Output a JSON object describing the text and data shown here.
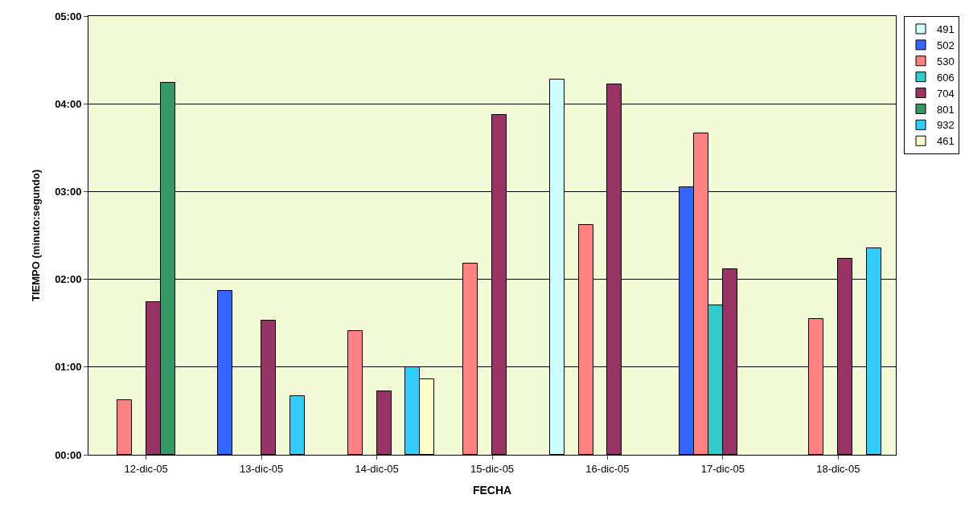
{
  "chart_data": {
    "type": "bar",
    "xlabel": "FECHA",
    "ylabel": "TIEMPO (minuto:segundo)",
    "categories": [
      "12-dic-05",
      "13-dic-05",
      "14-dic-05",
      "15-dic-05",
      "16-dic-05",
      "17-dic-05",
      "18-dic-05"
    ],
    "series": [
      {
        "name": "491",
        "color": "#ccffff",
        "values": [
          null,
          null,
          null,
          null,
          4.28,
          null,
          null
        ]
      },
      {
        "name": "502",
        "color": "#3366ff",
        "values": [
          null,
          1.87,
          null,
          null,
          null,
          3.05,
          null
        ]
      },
      {
        "name": "530",
        "color": "#ff8080",
        "values": [
          0.62,
          null,
          1.41,
          2.18,
          2.62,
          3.66,
          1.55
        ]
      },
      {
        "name": "606",
        "color": "#33cccc",
        "values": [
          null,
          null,
          null,
          null,
          null,
          1.7,
          null
        ]
      },
      {
        "name": "704",
        "color": "#993366",
        "values": [
          1.74,
          1.53,
          0.72,
          3.87,
          4.22,
          2.12,
          2.23
        ]
      },
      {
        "name": "801",
        "color": "#339966",
        "values": [
          4.24,
          null,
          null,
          null,
          null,
          null,
          null
        ]
      },
      {
        "name": "932",
        "color": "#33ccff",
        "values": [
          null,
          0.67,
          1.0,
          null,
          null,
          null,
          2.35
        ]
      },
      {
        "name": "461",
        "color": "#ffffcc",
        "values": [
          null,
          null,
          0.86,
          null,
          null,
          null,
          null
        ]
      }
    ],
    "ylim": [
      0,
      5
    ],
    "yticks": [
      {
        "value": 0,
        "label": "00:00"
      },
      {
        "value": 1,
        "label": "01:00"
      },
      {
        "value": 2,
        "label": "02:00"
      },
      {
        "value": 3,
        "label": "03:00"
      },
      {
        "value": 4,
        "label": "04:00"
      },
      {
        "value": 5,
        "label": "05:00"
      }
    ],
    "grid": "y",
    "legend": "right"
  }
}
